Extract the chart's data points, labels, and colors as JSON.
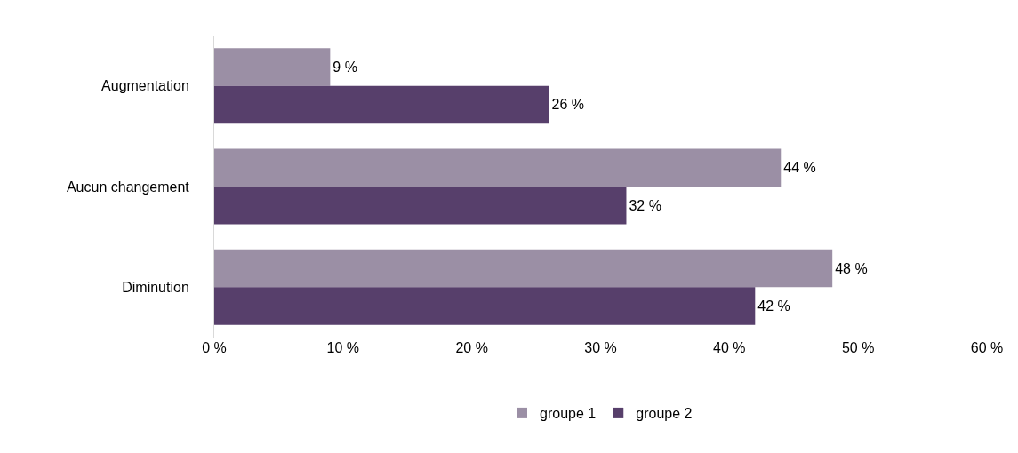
{
  "chart_data": {
    "type": "bar",
    "orientation": "horizontal",
    "categories": [
      "Augmentation",
      "Aucun changement",
      "Diminution"
    ],
    "series": [
      {
        "name": "groupe 1",
        "color": "#9b8fa5",
        "values": [
          9,
          44,
          48
        ],
        "value_labels": [
          "9 %",
          "44 %",
          "48 %"
        ]
      },
      {
        "name": "groupe 2",
        "color": "#573f6b",
        "values": [
          26,
          32,
          42
        ],
        "value_labels": [
          "26 %",
          "32 %",
          "42 %"
        ]
      }
    ],
    "xlim": [
      0,
      60
    ],
    "xticks": [
      {
        "value": 0,
        "label": "0 %"
      },
      {
        "value": 10,
        "label": "10 %"
      },
      {
        "value": 20,
        "label": "20 %"
      },
      {
        "value": 30,
        "label": "30 %"
      },
      {
        "value": 40,
        "label": "40 %"
      },
      {
        "value": 50,
        "label": "50 %"
      },
      {
        "value": 60,
        "label": "60 %"
      }
    ],
    "grid": false,
    "legend": "bottom"
  }
}
